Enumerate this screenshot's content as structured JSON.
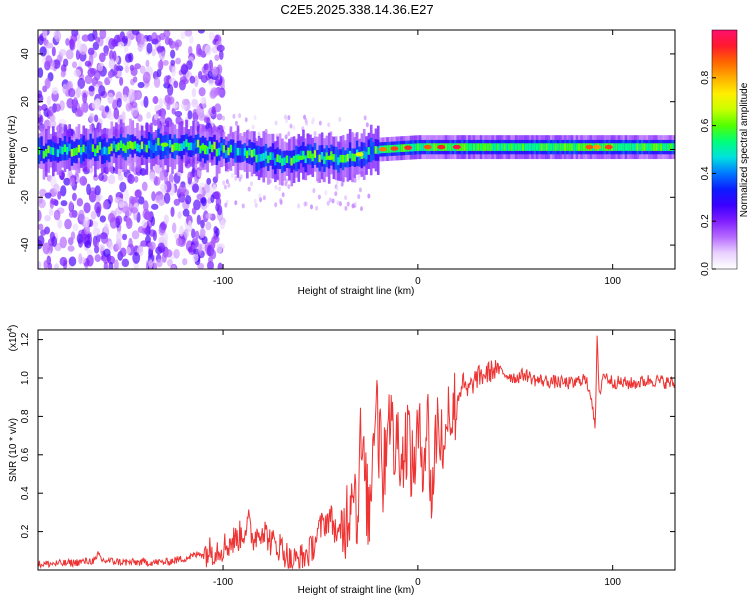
{
  "title": "C2E5.2025.338.14.36.E27",
  "chart_data": [
    {
      "type": "heatmap",
      "title": "C2E5.2025.338.14.36.E27",
      "xlabel": "Height of straight line (km)",
      "ylabel": "Frequency (Hz)",
      "xlim": [
        -195,
        132
      ],
      "ylim": [
        -50,
        50
      ],
      "xticks": [
        -100,
        0,
        100
      ],
      "xtick_labels": [
        "-100",
        "0",
        "100"
      ],
      "yticks": [
        -40,
        -20,
        0,
        20,
        40
      ],
      "ytick_labels": [
        "-40",
        "-20",
        "0",
        "20",
        "40"
      ],
      "ridge_center_hz": {
        "x": [
          -195,
          -170,
          -150,
          -130,
          -110,
          -90,
          -70,
          -50,
          -40,
          -30,
          -20,
          0,
          20,
          60,
          100,
          132
        ],
        "y": [
          -1,
          0,
          1,
          2,
          1,
          -2,
          -4,
          -3,
          -4,
          -2,
          0,
          1,
          1,
          1,
          1,
          1
        ]
      },
      "colorbar": {
        "label": "Normalized spectral amplitude",
        "range": [
          0.0,
          1.0
        ],
        "ticks": [
          0.0,
          0.2,
          0.4,
          0.6,
          0.8
        ],
        "tick_labels": [
          "0.0",
          "0.2",
          "0.4",
          "0.6",
          "0.8"
        ],
        "colormap": [
          "#ffffff",
          "#e9d2ff",
          "#b76bff",
          "#7f1fff",
          "#3a00ff",
          "#0b1cff",
          "#0078ff",
          "#00e0e0",
          "#00ff7a",
          "#52ff00",
          "#c8ff00",
          "#ffef00",
          "#ffae00",
          "#ff6400",
          "#ff1a2d",
          "#ff0f6e"
        ]
      }
    },
    {
      "type": "line",
      "xlabel": "Height of straight line (km)",
      "ylabel": "SNR (10 * v/v)",
      "scale_label_base": "(x10",
      "scale_label_exp": "4",
      "scale_label_end": ")",
      "xlim": [
        -195,
        132
      ],
      "ylim": [
        0.0,
        1.25
      ],
      "xticks": [
        -100,
        0,
        100
      ],
      "xtick_labels": [
        "-100",
        "0",
        "100"
      ],
      "yticks": [
        0.2,
        0.4,
        0.6,
        0.8,
        1.0,
        1.2
      ],
      "ytick_labels": [
        "0.2",
        "0.4",
        "0.6",
        "0.8",
        "1.0",
        "1.2"
      ],
      "series": [
        {
          "name": "SNR",
          "color": "#ee3333",
          "x": [
            -195,
            -180,
            -165,
            -164,
            -162,
            -150,
            -130,
            -120,
            -110,
            -100,
            -95,
            -90,
            -87,
            -85,
            -80,
            -75,
            -70,
            -65,
            -60,
            -55,
            -50,
            -45,
            -40,
            -35,
            -33,
            -31,
            -30,
            -28,
            -25,
            -22,
            -21,
            -20,
            -19,
            -18,
            -15,
            -12,
            -10,
            -8,
            -5,
            -3,
            0,
            3,
            5,
            7,
            10,
            13,
            14,
            15,
            17,
            20,
            23,
            25,
            30,
            35,
            40,
            45,
            50,
            55,
            60,
            70,
            80,
            85,
            88,
            90,
            91,
            92,
            93,
            95,
            100,
            110,
            120,
            132
          ],
          "y": [
            0.03,
            0.035,
            0.05,
            0.085,
            0.05,
            0.04,
            0.04,
            0.06,
            0.09,
            0.12,
            0.15,
            0.19,
            0.25,
            0.16,
            0.22,
            0.14,
            0.12,
            0.04,
            0.06,
            0.1,
            0.22,
            0.28,
            0.15,
            0.35,
            0.55,
            0.2,
            0.7,
            0.55,
            0.25,
            0.9,
            1.0,
            0.6,
            0.95,
            0.4,
            0.9,
            0.6,
            0.72,
            0.55,
            0.75,
            0.5,
            0.7,
            0.6,
            0.8,
            0.35,
            0.8,
            0.65,
            0.5,
            0.95,
            0.8,
            0.88,
            0.98,
            0.92,
            1.0,
            1.02,
            1.05,
            1.02,
            1.0,
            1.02,
            0.99,
            0.98,
            0.97,
            1.0,
            0.95,
            0.85,
            0.7,
            1.22,
            0.9,
            1.02,
            0.98,
            0.97,
            0.99,
            0.97
          ]
        }
      ]
    }
  ]
}
